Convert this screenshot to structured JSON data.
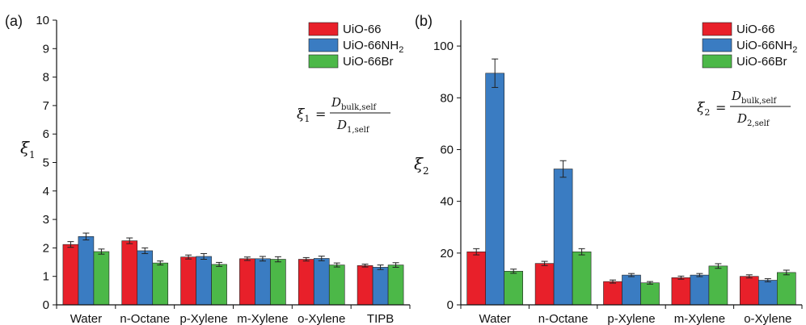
{
  "colors": {
    "UiO-66": "#e8202a",
    "UiO-66NH2": "#3a7cc2",
    "UiO-66Br": "#4cb848"
  },
  "chart_data": [
    {
      "type": "bar",
      "panel_label": "(a)",
      "ylabel": "ξ",
      "ylabel_sub": "1",
      "ylim": [
        0,
        10
      ],
      "yticks": [
        "0",
        "1",
        "2",
        "3",
        "4",
        "5",
        "6",
        "7",
        "8",
        "9",
        "10"
      ],
      "categories": [
        "Water",
        "n-Octane",
        "p-Xylene",
        "m-Xylene",
        "o-Xylene",
        "TIPB"
      ],
      "legend_position": "top-right",
      "series": [
        {
          "name": "UiO-66",
          "color_key": "UiO-66",
          "values": [
            2.12,
            2.25,
            1.68,
            1.62,
            1.6,
            1.38
          ],
          "errors": [
            0.1,
            0.1,
            0.07,
            0.06,
            0.06,
            0.05
          ]
        },
        {
          "name": "UiO-66NH",
          "name_sub": "2",
          "color_key": "UiO-66NH2",
          "values": [
            2.4,
            1.9,
            1.7,
            1.62,
            1.63,
            1.32
          ],
          "errors": [
            0.12,
            0.1,
            0.1,
            0.08,
            0.08,
            0.08
          ]
        },
        {
          "name": "UiO-66Br",
          "color_key": "UiO-66Br",
          "values": [
            1.87,
            1.47,
            1.42,
            1.6,
            1.4,
            1.4
          ],
          "errors": [
            0.09,
            0.07,
            0.07,
            0.09,
            0.07,
            0.08
          ]
        }
      ],
      "equation": {
        "lhs": "ξ",
        "lhs_sub": "1",
        "eq": "=",
        "num": "D",
        "num_sub": "bulk,self",
        "den": "D",
        "den_sub": "1,self"
      }
    },
    {
      "type": "bar",
      "panel_label": "(b)",
      "ylabel": "ξ",
      "ylabel_sub": "2",
      "ylim": [
        0,
        110
      ],
      "yticks": [
        "0",
        "20",
        "40",
        "60",
        "80",
        "100"
      ],
      "ytick_values": [
        0,
        20,
        40,
        60,
        80,
        100
      ],
      "categories": [
        "Water",
        "n-Octane",
        "p-Xylene",
        "m-Xylene",
        "o-Xylene"
      ],
      "legend_position": "top-right",
      "series": [
        {
          "name": "UiO-66",
          "color_key": "UiO-66",
          "values": [
            20.5,
            16,
            9,
            10.5,
            11
          ],
          "errors": [
            1.2,
            0.8,
            0.6,
            0.6,
            0.6
          ]
        },
        {
          "name": "UiO-66NH",
          "name_sub": "2",
          "color_key": "UiO-66NH2",
          "values": [
            89.5,
            52.5,
            11.5,
            11.5,
            9.5
          ],
          "errors": [
            5.5,
            3.2,
            0.6,
            0.6,
            0.6
          ]
        },
        {
          "name": "UiO-66Br",
          "color_key": "UiO-66Br",
          "values": [
            13,
            20.5,
            8.5,
            15,
            12.5
          ],
          "errors": [
            0.8,
            1.2,
            0.5,
            0.9,
            0.9
          ]
        }
      ],
      "equation": {
        "lhs": "ξ",
        "lhs_sub": "2",
        "eq": "=",
        "num": "D",
        "num_sub": "bulk,self",
        "den": "D",
        "den_sub": "2,self"
      }
    }
  ]
}
